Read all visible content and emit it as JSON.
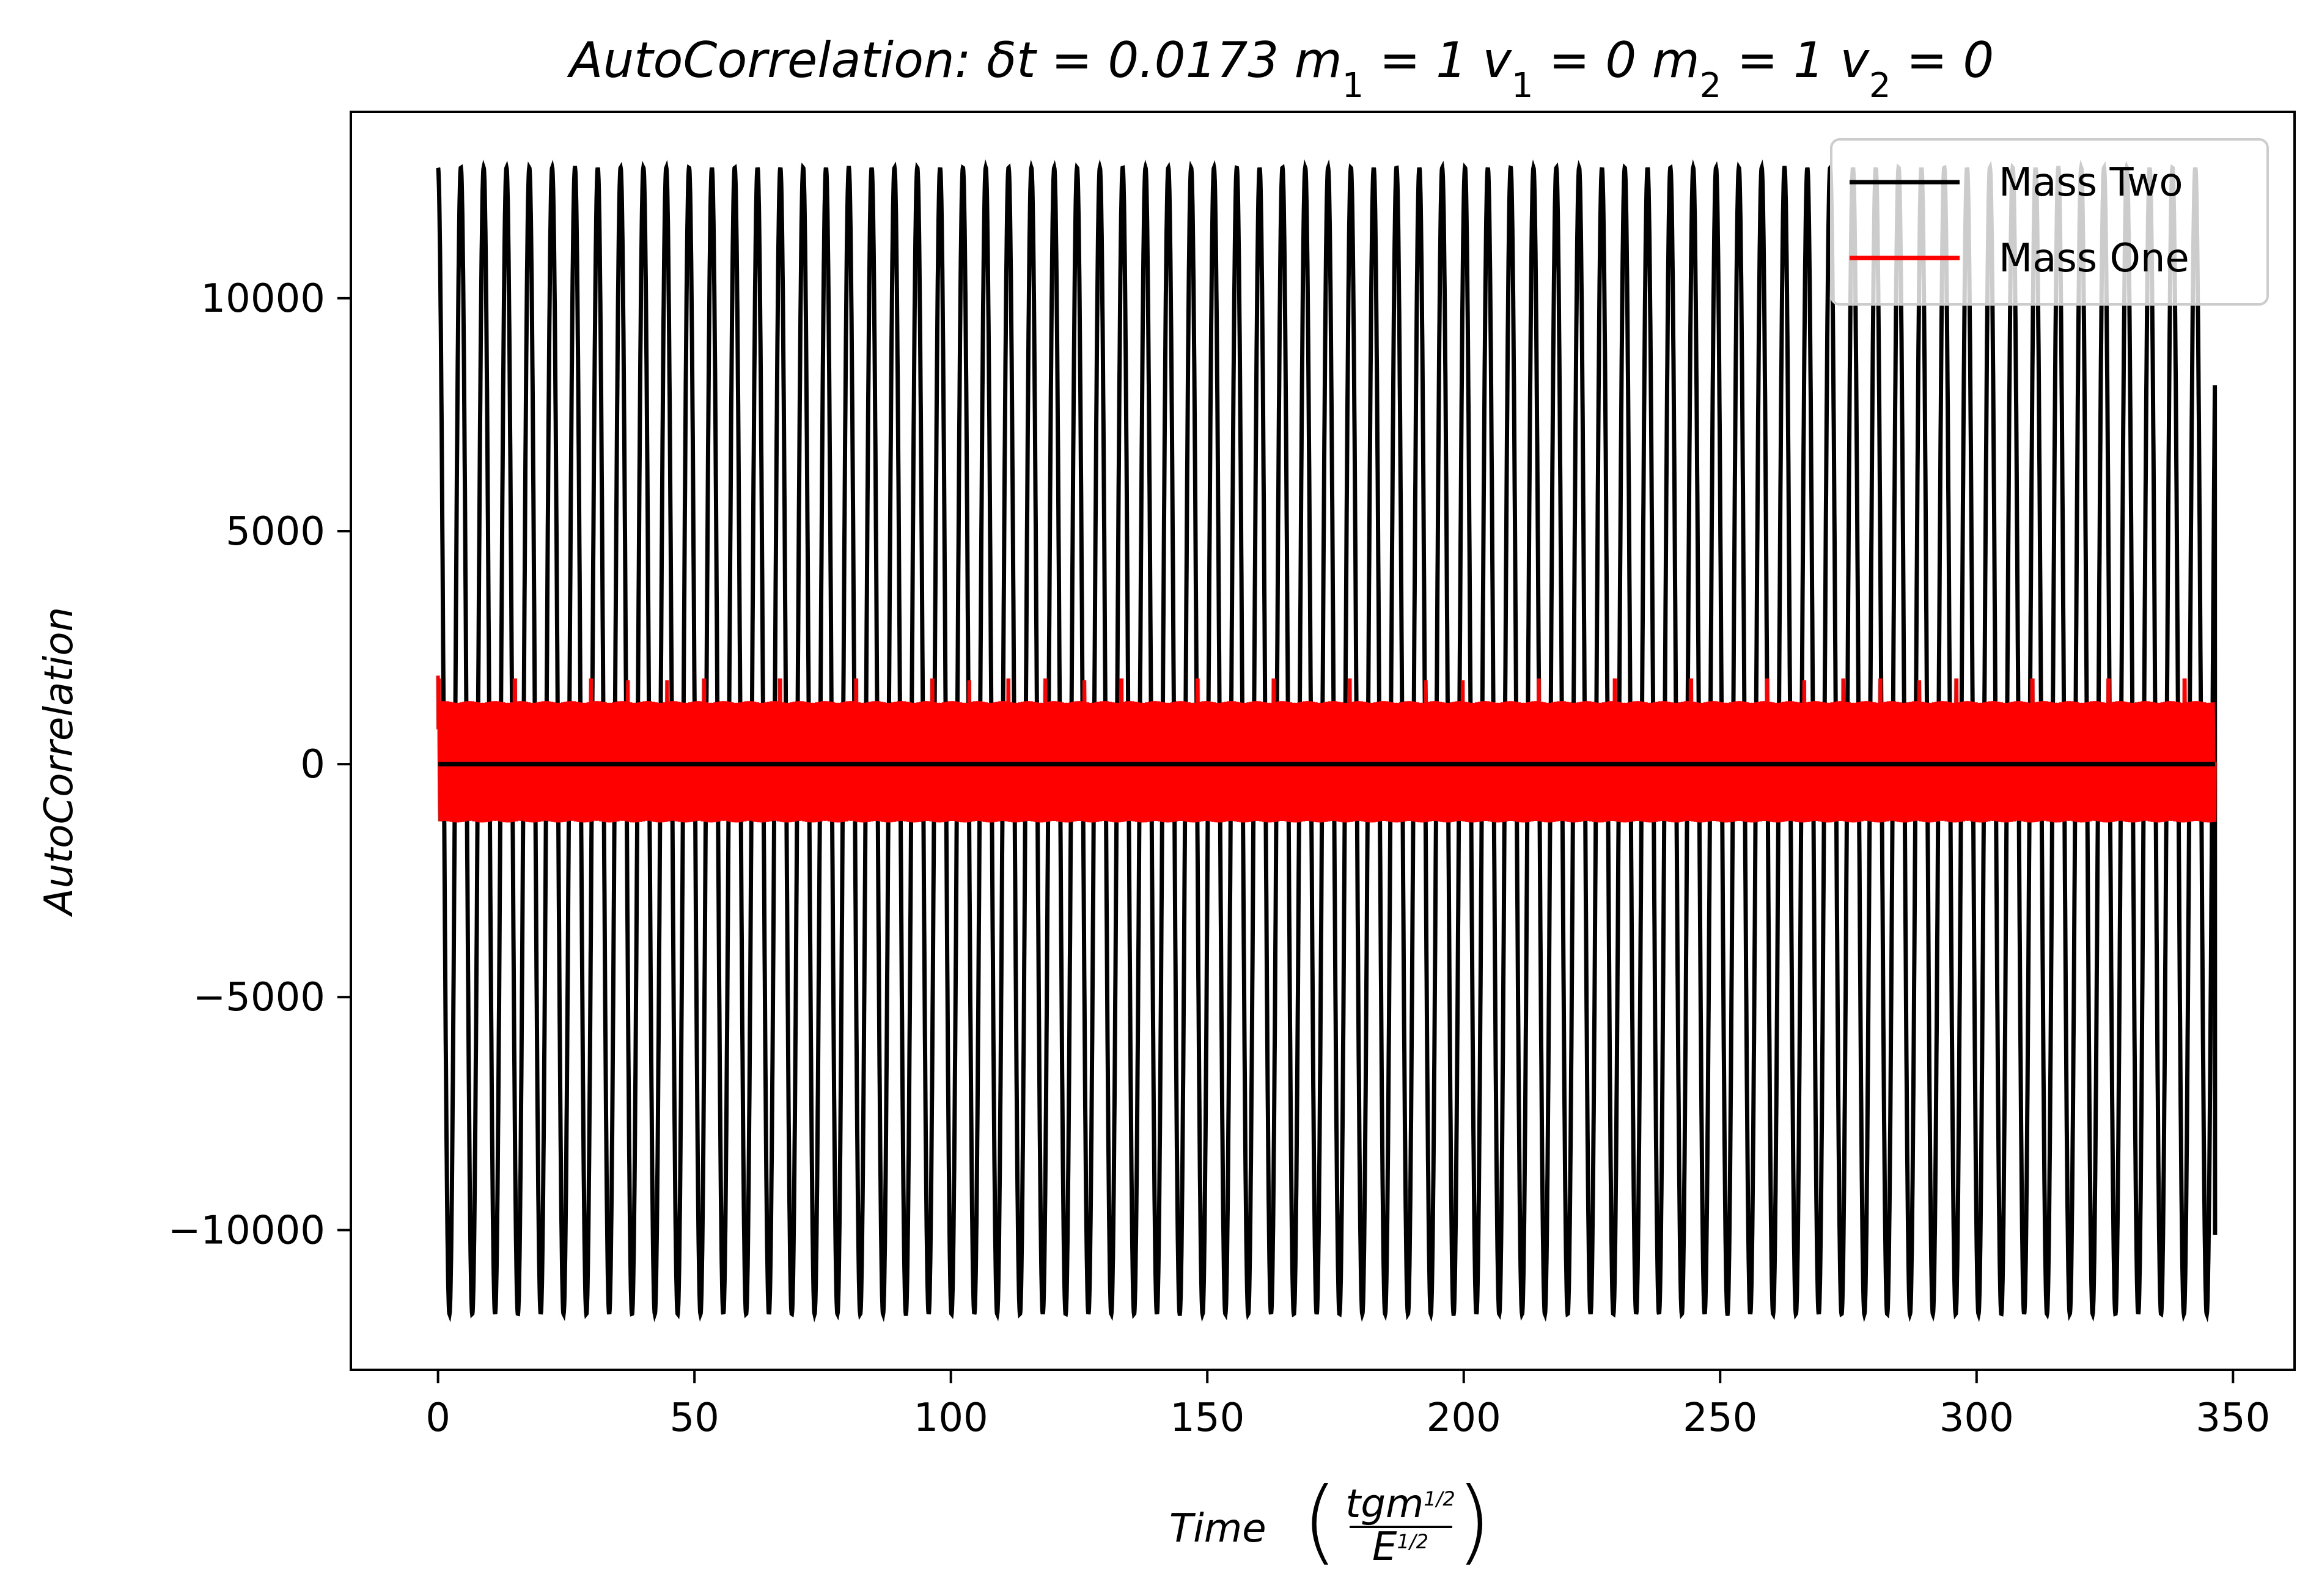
{
  "chart_data": {
    "type": "line",
    "title_parts": [
      "AutoCorrelation: δt = 0.0173 m",
      "1",
      " = 1 v",
      "1",
      " = 0 m",
      "2",
      " = 1 v",
      "2",
      " = 0"
    ],
    "xlabel_parts": [
      "Time",
      "tgm",
      "1/2",
      "E",
      "1/2"
    ],
    "ylabel": "AutoCorrelation",
    "xlim": [
      -17,
      362
    ],
    "ylim": [
      -13000,
      14000
    ],
    "x_ticks": [
      0,
      50,
      100,
      150,
      200,
      250,
      300,
      350
    ],
    "y_ticks": [
      -10000,
      -5000,
      0,
      5000,
      10000
    ],
    "y_tick_labels": [
      "−10000",
      "−5000",
      "0",
      "5000",
      "10000"
    ],
    "legend_position": "upper-right",
    "series": [
      {
        "name": "Mass Two",
        "color": "#000000",
        "x_range": [
          0,
          346.5
        ],
        "period": 4.45,
        "upper_envelope": 12800,
        "lower_envelope": -11800,
        "end_value": -10100,
        "baseline": 0
      },
      {
        "name": "Mass One",
        "color": "#ff0000",
        "x_range": [
          0,
          346.5
        ],
        "period": 0.55,
        "upper_envelope": 1350,
        "lower_envelope": -1250,
        "spike_max": 1800,
        "start_value": 1900
      }
    ]
  }
}
